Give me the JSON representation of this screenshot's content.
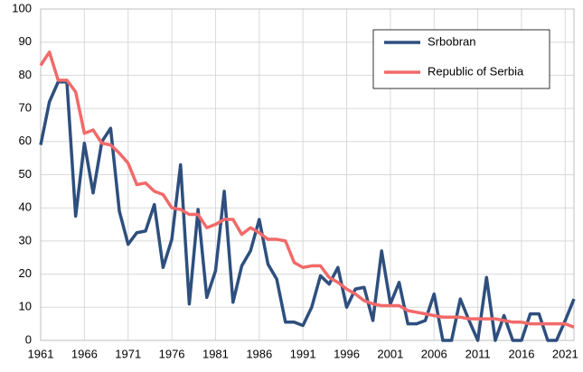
{
  "chart_data": {
    "type": "line",
    "x": [
      1961,
      1962,
      1963,
      1964,
      1965,
      1966,
      1967,
      1968,
      1969,
      1970,
      1971,
      1972,
      1973,
      1974,
      1975,
      1976,
      1977,
      1978,
      1979,
      1980,
      1981,
      1982,
      1983,
      1984,
      1985,
      1986,
      1987,
      1988,
      1989,
      1990,
      1991,
      1992,
      1993,
      1994,
      1995,
      1996,
      1997,
      1998,
      1999,
      2000,
      2001,
      2002,
      2003,
      2004,
      2005,
      2006,
      2007,
      2008,
      2009,
      2010,
      2011,
      2012,
      2013,
      2014,
      2015,
      2016,
      2017,
      2018,
      2019,
      2020,
      2021,
      2022
    ],
    "series": [
      {
        "name": "Srbobran",
        "color": "#2e4f7e",
        "values": [
          59,
          72,
          78,
          78,
          37.5,
          59.5,
          44.5,
          60,
          64,
          39,
          29,
          32.5,
          33,
          41,
          22,
          30.5,
          53,
          11,
          39.5,
          13,
          21,
          45,
          11.5,
          22.5,
          27,
          36.5,
          23,
          18.5,
          5.5,
          5.5,
          4.5,
          10,
          19.5,
          17,
          22,
          10,
          15.5,
          16,
          6,
          27,
          11,
          17.5,
          5,
          5,
          6,
          14,
          0,
          0,
          12.5,
          6,
          0,
          19,
          0,
          7.5,
          0,
          0,
          8,
          8,
          0,
          0,
          6,
          12.5
        ]
      },
      {
        "name": "Republic of Serbia",
        "color": "#f26a6a",
        "values": [
          83,
          87,
          78.5,
          78.5,
          75,
          62.5,
          63.5,
          59.5,
          59,
          56.5,
          53.5,
          47,
          47.5,
          45,
          44,
          40,
          39.5,
          38,
          38,
          34,
          35,
          36.5,
          36.5,
          32,
          34,
          32.5,
          30.5,
          30.5,
          30,
          23.5,
          22,
          22.5,
          22.5,
          19,
          17.5,
          15.5,
          14,
          12,
          11,
          10.5,
          10.5,
          10.5,
          9,
          8.5,
          8,
          7.5,
          7,
          7,
          7,
          6.5,
          6.5,
          6.5,
          6.5,
          6,
          5.5,
          5.5,
          5,
          5,
          5,
          5,
          5,
          4
        ]
      }
    ],
    "xlim": [
      1961,
      2022
    ],
    "xticks": [
      1961,
      1966,
      1971,
      1976,
      1981,
      1986,
      1991,
      1996,
      2001,
      2006,
      2011,
      2016,
      2021
    ],
    "ylim": [
      0,
      100
    ],
    "yticks": [
      0,
      10,
      20,
      30,
      40,
      50,
      60,
      70,
      80,
      90,
      100
    ],
    "grid": true,
    "legend": "top-right"
  }
}
